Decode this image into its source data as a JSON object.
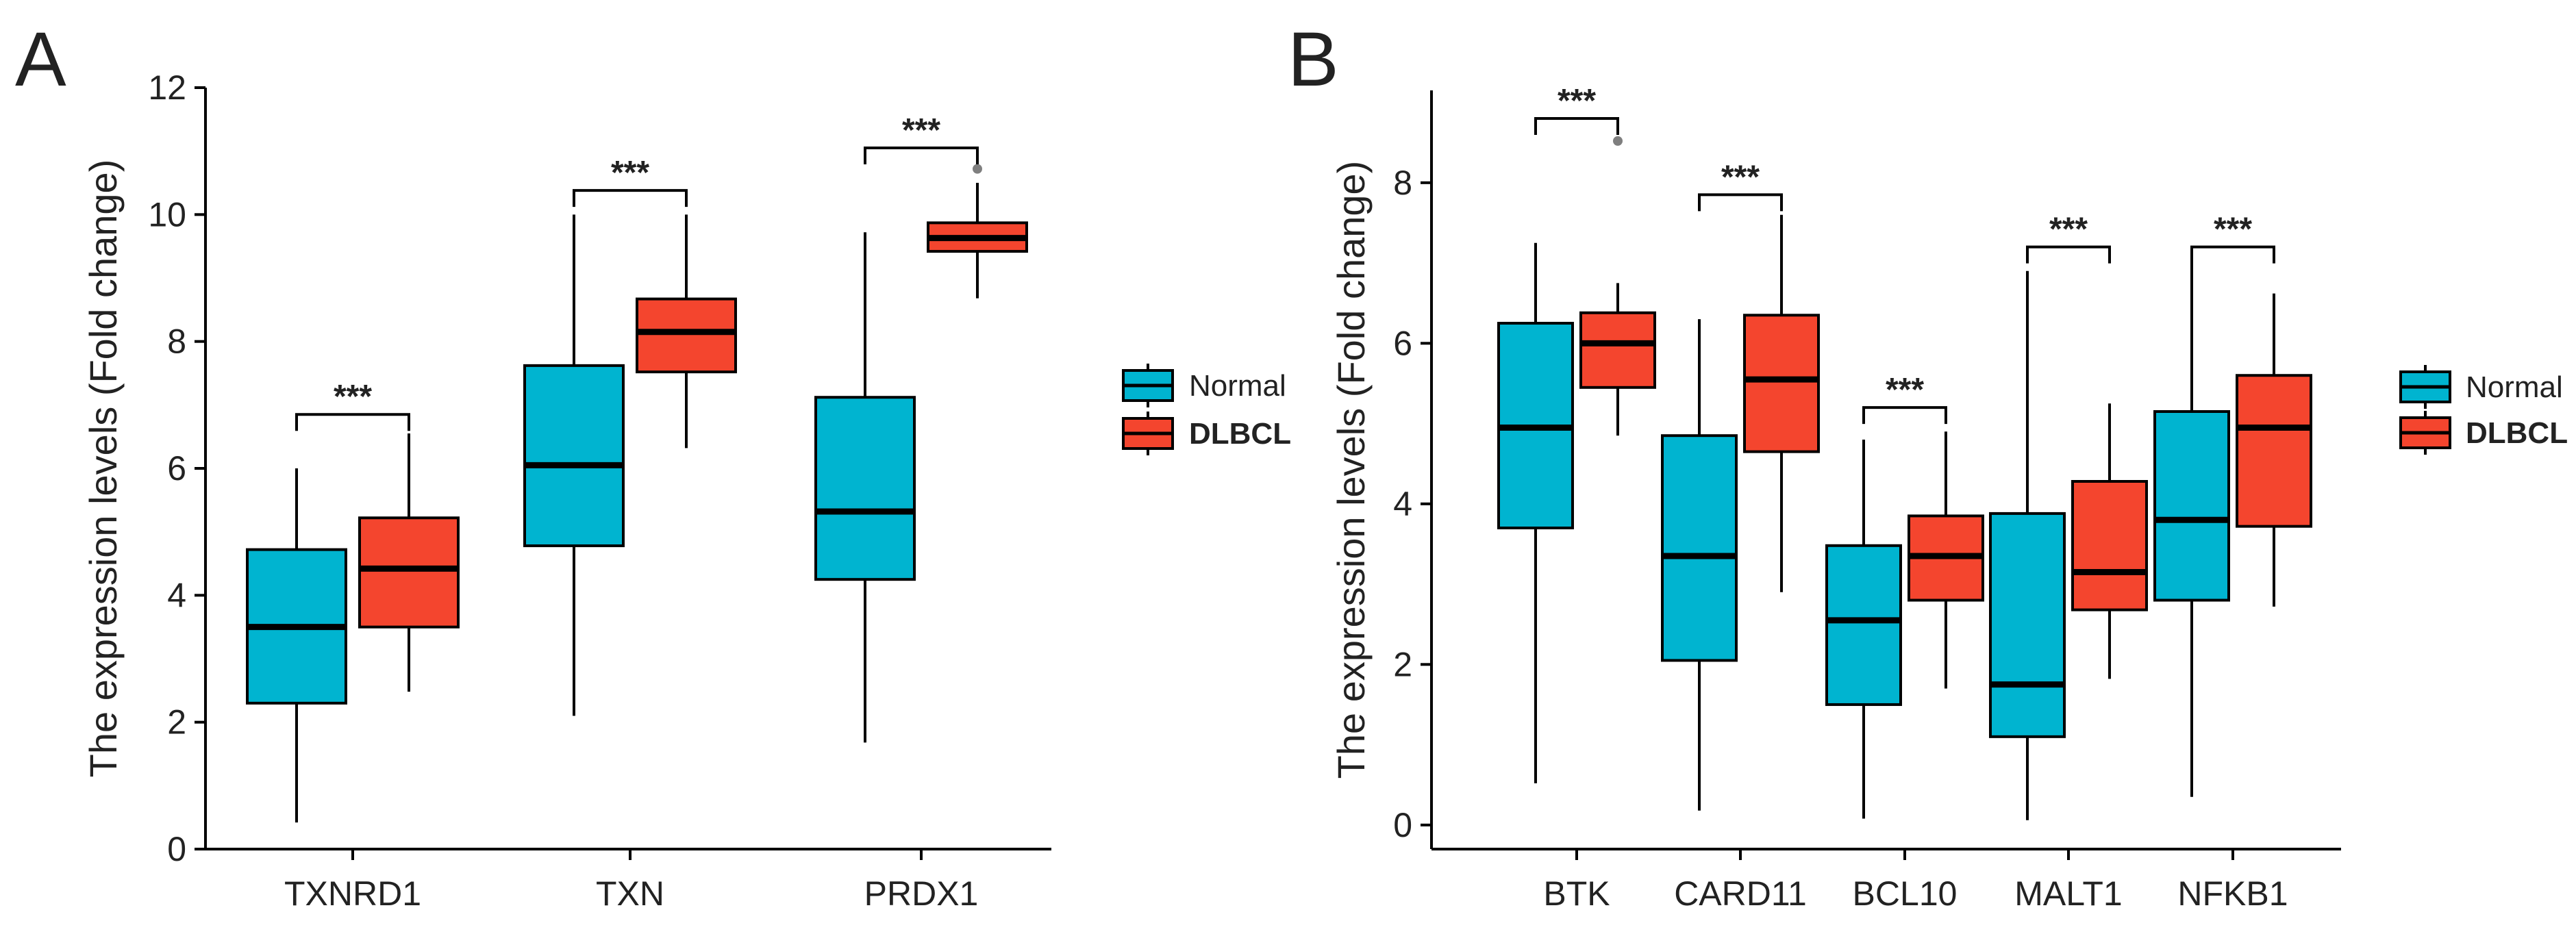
{
  "colors": {
    "normal": "#00B4D0",
    "dlbcl": "#F4452E",
    "line": "#000000",
    "outlier": "#7f7f7f"
  },
  "chart_data": [
    {
      "type": "box",
      "panel": "A",
      "ylabel": "The expression levels (Fold change)",
      "xlabel": "",
      "ylim": [
        0,
        12
      ],
      "yticks": [
        0,
        2,
        4,
        6,
        8,
        10,
        12
      ],
      "categories": [
        "TXNRD1",
        "TXN",
        "PRDX1"
      ],
      "legend": {
        "position": "right",
        "entries": [
          "Normal",
          "DLBCL"
        ]
      },
      "series": [
        {
          "name": "Normal",
          "boxes": [
            {
              "min": 0.42,
              "q1": 2.3,
              "median": 3.5,
              "q3": 4.72,
              "max": 6.0
            },
            {
              "min": 2.1,
              "q1": 4.78,
              "median": 6.05,
              "q3": 7.62,
              "max": 10.0
            },
            {
              "min": 1.68,
              "q1": 4.25,
              "median": 5.32,
              "q3": 7.12,
              "max": 9.72
            }
          ]
        },
        {
          "name": "DLBCL",
          "boxes": [
            {
              "min": 2.48,
              "q1": 3.5,
              "median": 4.42,
              "q3": 5.22,
              "max": 6.55
            },
            {
              "min": 6.32,
              "q1": 7.52,
              "median": 8.15,
              "q3": 8.67,
              "max": 10.0
            },
            {
              "min": 8.68,
              "q1": 9.42,
              "median": 9.63,
              "q3": 9.87,
              "max": 10.5,
              "outliers": [
                10.72
              ]
            }
          ]
        }
      ],
      "significance": [
        {
          "category": "TXNRD1",
          "y": 6.85,
          "label": "***"
        },
        {
          "category": "TXN",
          "y": 10.38,
          "label": "***"
        },
        {
          "category": "PRDX1",
          "y": 11.05,
          "label": "***"
        }
      ]
    },
    {
      "type": "box",
      "panel": "B",
      "ylabel": "The expression levels (Fold change)",
      "xlabel": "",
      "ylim": [
        -0.3,
        9.15
      ],
      "yticks": [
        0,
        2,
        4,
        6,
        8
      ],
      "categories": [
        "BTK",
        "CARD11",
        "BCL10",
        "MALT1",
        "NFKB1"
      ],
      "legend": {
        "position": "right",
        "entries": [
          "Normal",
          "DLBCL"
        ]
      },
      "series": [
        {
          "name": "Normal",
          "boxes": [
            {
              "min": 0.52,
              "q1": 3.7,
              "median": 4.95,
              "q3": 6.25,
              "max": 7.25
            },
            {
              "min": 0.18,
              "q1": 2.05,
              "median": 3.35,
              "q3": 4.85,
              "max": 6.3
            },
            {
              "min": 0.08,
              "q1": 1.5,
              "median": 2.55,
              "q3": 3.48,
              "max": 4.8
            },
            {
              "min": 0.06,
              "q1": 1.1,
              "median": 1.75,
              "q3": 3.88,
              "max": 6.9
            },
            {
              "min": 0.35,
              "q1": 2.8,
              "median": 3.8,
              "q3": 5.15,
              "max": 7.0
            }
          ]
        },
        {
          "name": "DLBCL",
          "boxes": [
            {
              "min": 4.85,
              "q1": 5.45,
              "median": 6.0,
              "q3": 6.38,
              "max": 6.75,
              "outliers": [
                8.52
              ]
            },
            {
              "min": 2.9,
              "q1": 4.65,
              "median": 5.55,
              "q3": 6.35,
              "max": 7.6
            },
            {
              "min": 1.7,
              "q1": 2.8,
              "median": 3.35,
              "q3": 3.85,
              "max": 4.9
            },
            {
              "min": 1.82,
              "q1": 2.68,
              "median": 3.15,
              "q3": 4.28,
              "max": 5.25
            },
            {
              "min": 2.72,
              "q1": 3.72,
              "median": 4.95,
              "q3": 5.6,
              "max": 6.62
            }
          ]
        }
      ],
      "significance": [
        {
          "category": "BTK",
          "y": 8.8,
          "label": "***"
        },
        {
          "category": "CARD11",
          "y": 7.85,
          "label": "***"
        },
        {
          "category": "BCL10",
          "y": 5.2,
          "label": "***"
        },
        {
          "category": "MALT1",
          "y": 7.2,
          "label": "***"
        },
        {
          "category": "NFKB1",
          "y": 7.2,
          "label": "***"
        }
      ]
    }
  ]
}
